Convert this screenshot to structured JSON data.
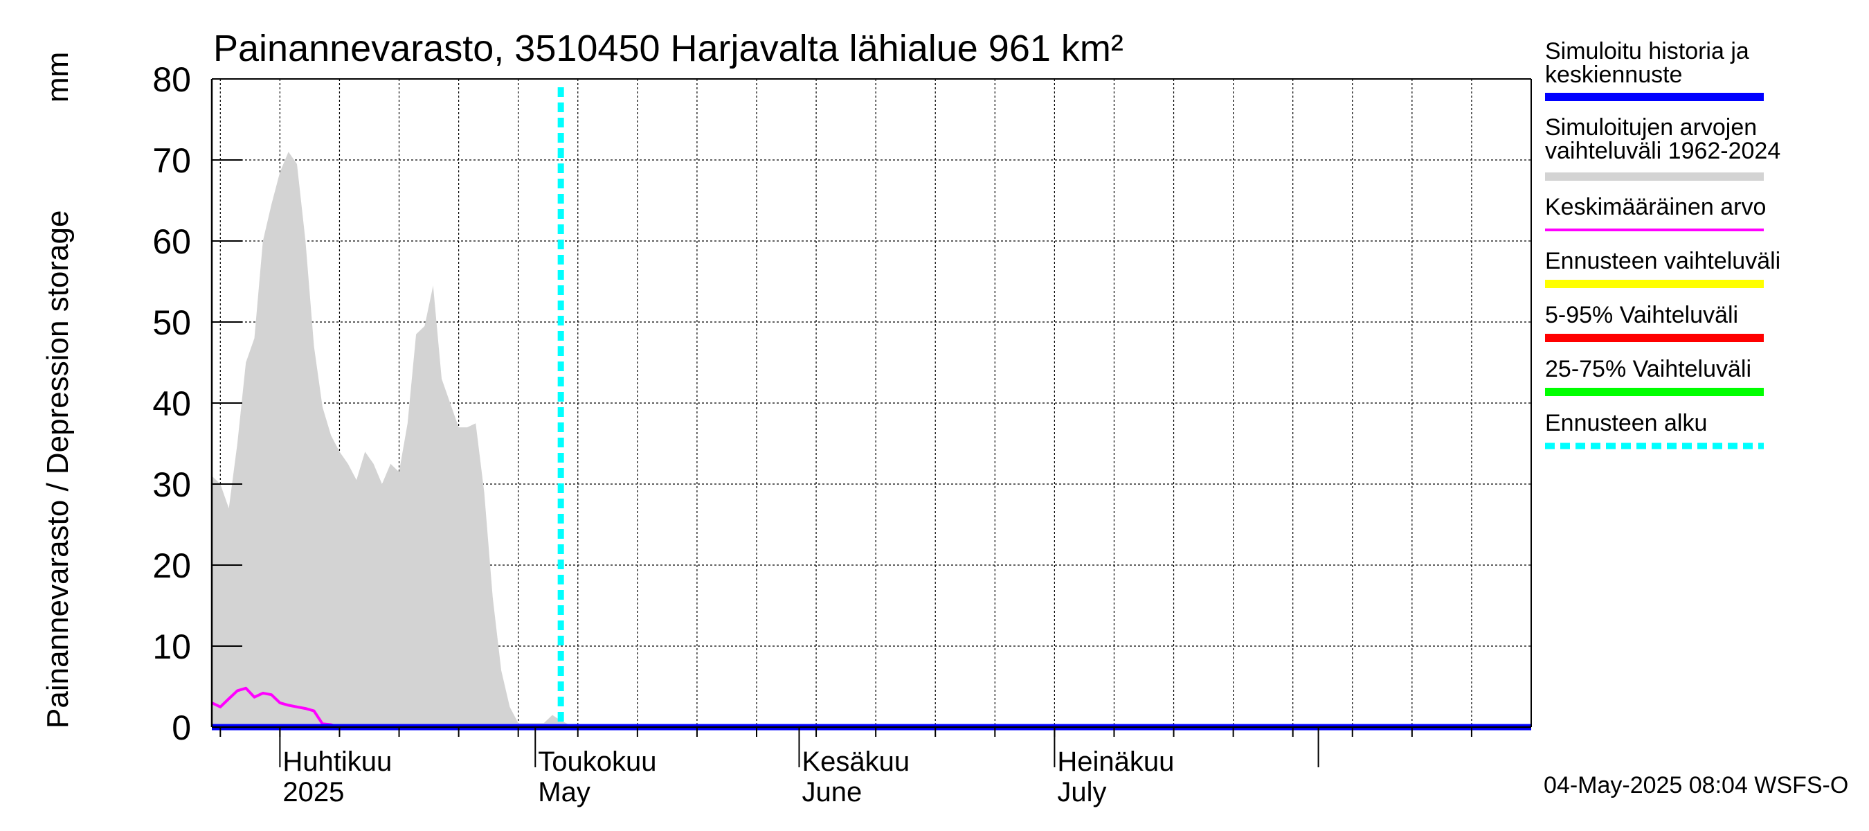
{
  "chart_data": {
    "type": "area",
    "title": "Painannevarasto, 3510450 Harjavalta lähialue 961 km²",
    "ylabel": "Painannevarasto / Depression storage",
    "yunit": "mm",
    "ylim": [
      0,
      80
    ],
    "yticks": [
      0,
      10,
      20,
      30,
      40,
      50,
      60,
      70,
      80
    ],
    "x_range_days": [
      0,
      155
    ],
    "x_start_note": "day 0 = 2025-03-24",
    "grid": true,
    "month_labels": [
      {
        "day": 8,
        "fi": "Huhtikuu",
        "en": "2025"
      },
      {
        "day": 38,
        "fi": "Toukokuu",
        "en": "May"
      },
      {
        "day": 69,
        "fi": "Kesäkuu",
        "en": "June"
      },
      {
        "day": 99,
        "fi": "Heinäkuu",
        "en": "July"
      }
    ],
    "month_boundaries": [
      8,
      38,
      69,
      99,
      130
    ],
    "forecast_start_day": 41,
    "series": [
      {
        "name": "Simuloitujen arvojen vaihteluväli 1962-2024",
        "role": "range",
        "color": "#d3d3d3",
        "x": [
          0,
          1,
          2,
          3,
          4,
          5,
          6,
          7,
          8,
          9,
          10,
          11,
          12,
          13,
          14,
          15,
          16,
          17,
          18,
          19,
          20,
          21,
          22,
          23,
          24,
          25,
          26,
          27,
          28,
          29,
          30,
          31,
          32,
          33,
          34,
          35,
          36,
          37,
          38,
          39,
          40,
          41,
          42,
          43,
          44,
          45,
          46,
          47,
          48,
          49,
          50,
          51,
          52,
          53,
          54,
          155
        ],
        "lower": [
          0,
          0,
          0,
          0,
          0,
          0,
          0,
          0,
          0,
          0,
          0,
          0,
          0,
          0,
          0,
          0,
          0,
          0,
          0,
          0,
          0,
          0,
          0,
          0,
          0,
          0,
          0,
          0,
          0,
          0,
          0,
          0,
          0,
          0,
          0,
          0,
          0,
          0,
          0,
          0,
          0,
          0,
          0,
          0,
          0,
          0,
          0,
          0,
          0,
          0,
          0,
          0,
          0,
          0,
          0,
          0
        ],
        "upper": [
          31,
          30,
          27,
          35,
          45,
          48,
          60,
          64.5,
          68.5,
          71,
          69.5,
          60,
          47,
          39.5,
          36,
          34,
          32.5,
          30.5,
          34,
          32.5,
          30,
          32.5,
          31.5,
          37.5,
          48.5,
          49.5,
          54.5,
          43,
          40,
          37,
          37,
          37.5,
          29,
          16,
          7,
          2.5,
          0.5,
          0.5,
          0.5,
          0.5,
          1.5,
          0.8,
          0.3,
          0.3,
          0.3,
          0.3,
          0.3,
          0.3,
          0.3,
          0.3,
          0.3,
          0.3,
          0.3,
          0.3,
          0.3,
          0.3
        ]
      },
      {
        "name": "Keskimääräinen arvo",
        "role": "line",
        "color": "#ff00ff",
        "x": [
          0,
          1,
          2,
          3,
          4,
          5,
          6,
          7,
          8,
          9,
          10,
          11,
          12,
          13,
          14,
          15,
          16,
          17,
          155
        ],
        "values": [
          3,
          2.5,
          3.5,
          4.5,
          4.8,
          3.7,
          4.2,
          4,
          3,
          2.7,
          2.5,
          2.3,
          2,
          0.4,
          0.3,
          0,
          0,
          0,
          0
        ]
      },
      {
        "name": "Simuloitu historia ja keskiennuste",
        "role": "line",
        "color": "#0000ff",
        "x": [
          0,
          155
        ],
        "values": [
          0,
          0
        ]
      }
    ],
    "legend": [
      {
        "label": "Simuloitu historia ja keskiennuste",
        "color": "#0000ff",
        "style": "solid"
      },
      {
        "label": "Simuloitujen arvojen vaihteluväli 1962-2024",
        "color": "#d3d3d3",
        "style": "solid"
      },
      {
        "label": "Keskimääräinen arvo",
        "color": "#ff00ff",
        "style": "thin"
      },
      {
        "label": "Ennusteen vaihteluväli",
        "color": "#ffff00",
        "style": "solid"
      },
      {
        "label": "5-95% Vaihteluväli",
        "color": "#ff0000",
        "style": "solid"
      },
      {
        "label": "25-75% Vaihteluväli",
        "color": "#00ff00",
        "style": "solid"
      },
      {
        "label": "Ennusteen alku",
        "color": "#00ffff",
        "style": "dashed"
      }
    ],
    "footer": "04-May-2025 08:04 WSFS-O"
  }
}
